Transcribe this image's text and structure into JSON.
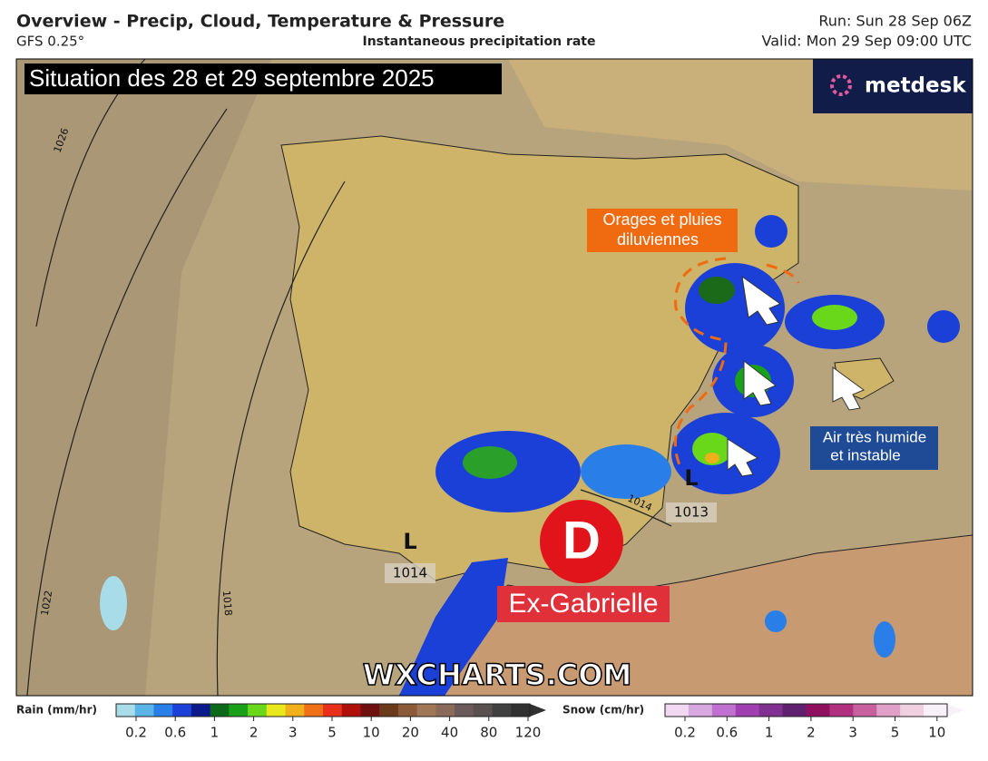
{
  "header": {
    "title": "Overview - Precip, Cloud, Temperature & Pressure",
    "model": "GFS 0.25°",
    "field": "Instantaneous precipitation rate",
    "run": "Run: Sun 28 Sep 06Z",
    "valid": "Valid: Mon 29 Sep 09:00 UTC"
  },
  "map": {
    "banner": "Situation des 28 et 29 septembre 2025",
    "brand": "metdesk",
    "watermark": "WXCHARTS.COM",
    "storm_note": [
      "Orages et pluies",
      "diluviennes"
    ],
    "air_note": [
      "Air très humide",
      "et instable"
    ],
    "depression": {
      "symbol": "D",
      "name": "Ex-Gabrielle"
    },
    "lows": [
      {
        "symbol": "L",
        "pressure": 1014
      },
      {
        "symbol": "L",
        "pressure": 1013
      }
    ],
    "isobars": [
      1026,
      1022,
      1018,
      1014
    ]
  },
  "legend": {
    "rain": {
      "title": "Rain (mm/hr)",
      "ticks": [
        0.2,
        0.6,
        1,
        2,
        3,
        5,
        10,
        20,
        40,
        80,
        120
      ],
      "colors": [
        "#a8dce8",
        "#5ab4e8",
        "#2a7ee8",
        "#1a40d8",
        "#0a1a8a",
        "#0a6a1a",
        "#1aa01a",
        "#6ad81a",
        "#e8e81a",
        "#f0b01a",
        "#f0701a",
        "#e8301a",
        "#b0100a",
        "#701010",
        "#6a3a1a",
        "#8a5a3a",
        "#a07858",
        "#8a6a5a",
        "#6a5a5a",
        "#5a5050",
        "#404040",
        "#303030"
      ]
    },
    "snow": {
      "title": "Snow (cm/hr)",
      "ticks": [
        0.2,
        0.6,
        1,
        2,
        3,
        5,
        10
      ],
      "colors": [
        "#f0d8f0",
        "#d8a8e0",
        "#c070d0",
        "#a040b0",
        "#803090",
        "#602070",
        "#901060",
        "#b03080",
        "#c860a0",
        "#e0a0c8",
        "#f0d0e0",
        "#f8f0f8"
      ]
    }
  }
}
